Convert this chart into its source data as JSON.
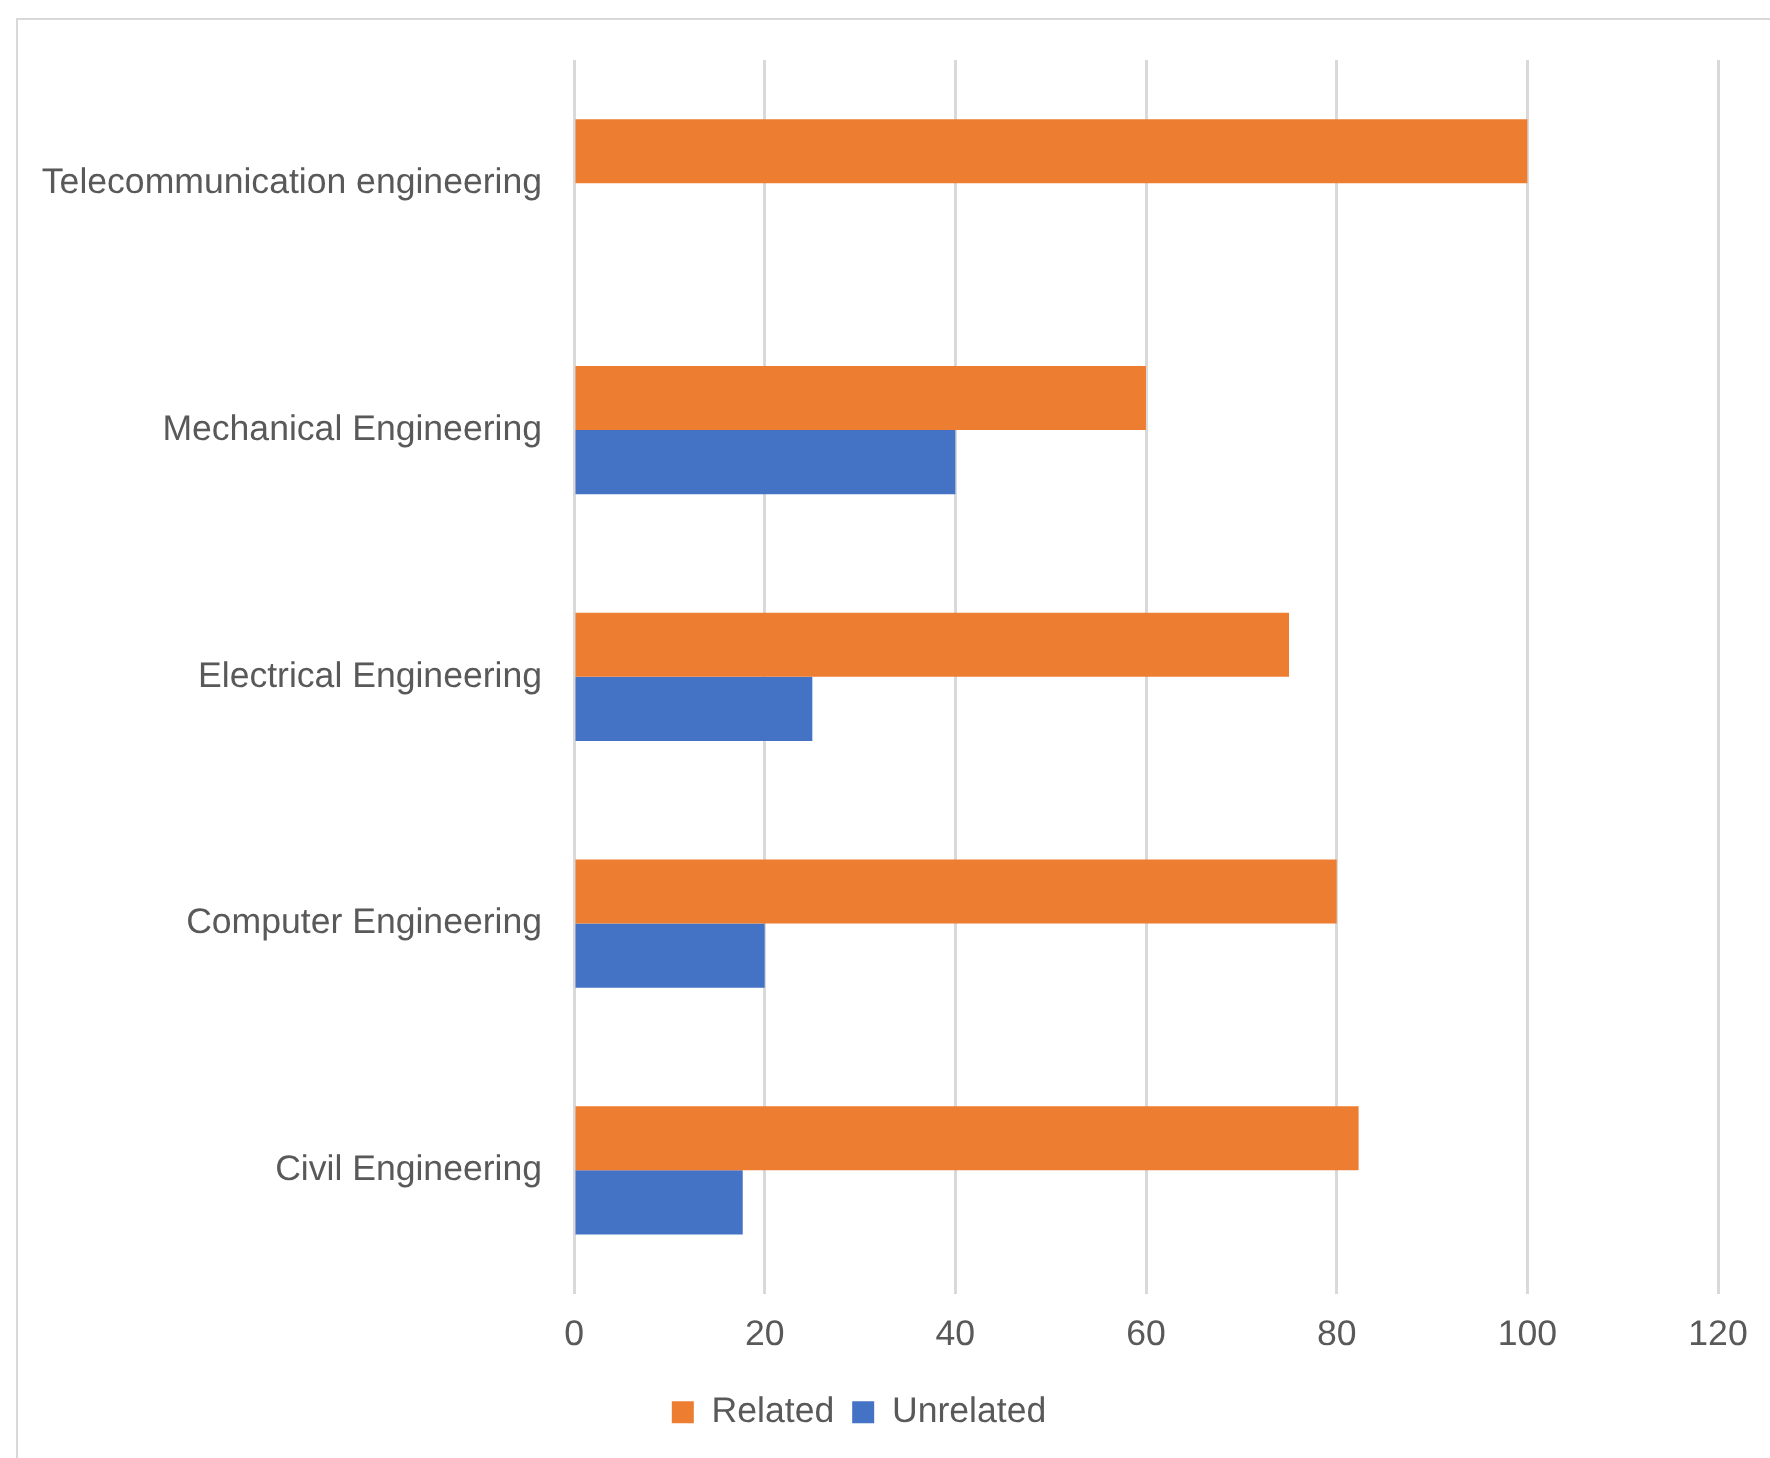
{
  "chart_data": {
    "type": "bar",
    "orientation": "horizontal",
    "categories": [
      "Telecommunication engineering",
      "Mechanical Engineering",
      "Electrical Engineering",
      "Computer Engineering",
      "Civil Engineering"
    ],
    "series": [
      {
        "name": "Related",
        "color": "#ed7d31",
        "values": [
          100,
          60,
          75,
          80,
          82.3
        ]
      },
      {
        "name": "Unrelated",
        "color": "#4472c4",
        "values": [
          null,
          40,
          25,
          20,
          17.7
        ]
      }
    ],
    "xlim": [
      0,
      120
    ],
    "xticks": [
      0,
      20,
      40,
      60,
      80,
      100,
      120
    ],
    "grid": "x",
    "legend": "bottom"
  }
}
